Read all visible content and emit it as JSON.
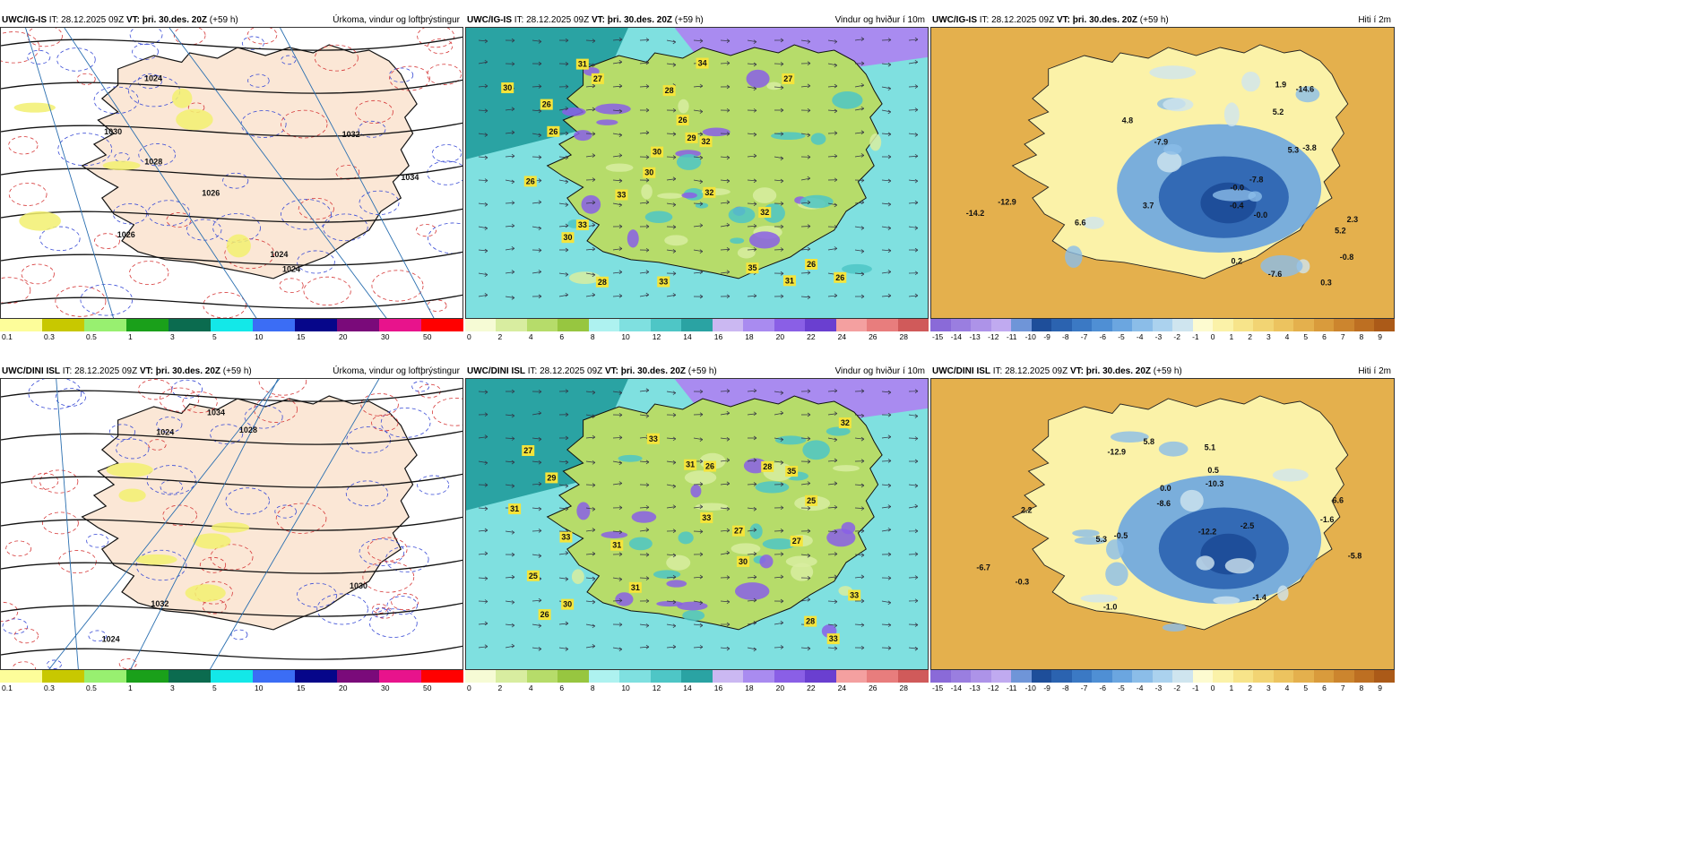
{
  "rows": [
    {
      "model": "UWC/IG-IS",
      "panels": [
        {
          "model_label": "UWC/IG-IS",
          "it_label": "IT:",
          "it": "28.12.2025 09Z",
          "vt_label": "VT:",
          "vt": "þri. 30.des. 20Z",
          "lead": "(+59 h)",
          "title": "Úrkoma, vindur og loftþrýstingur",
          "map_labels": [
            "1024",
            "1024",
            "1026",
            "1030",
            "1032",
            "1024",
            "1034",
            "1028",
            "1026"
          ]
        },
        {
          "model_label": "UWC/IG-IS",
          "it_label": "IT:",
          "it": "28.12.2025 09Z",
          "vt_label": "VT:",
          "vt": "þri. 30.des. 20Z",
          "lead": "(+59 h)",
          "title": "Vindur og hviður í 10m",
          "map_labels": [
            "30",
            "35",
            "32",
            "26",
            "27",
            "31",
            "33",
            "30",
            "33",
            "32",
            "28",
            "26",
            "27",
            "32",
            "34",
            "30",
            "26",
            "29",
            "26",
            "26",
            "26",
            "33",
            "30",
            "31",
            "28"
          ]
        },
        {
          "model_label": "UWC/IG-IS",
          "it_label": "IT:",
          "it": "28.12.2025 09Z",
          "vt_label": "VT:",
          "vt": "þri. 30.des. 20Z",
          "lead": "(+59 h)",
          "title": "Hiti í 2m",
          "map_labels": [
            "-0.4",
            "2.3",
            "5.3",
            "5.2",
            "0.2",
            "5.2",
            "-3.8",
            "-7.9",
            "-0.8",
            "-7.6",
            "-7.8",
            "-0.0",
            "-14.2",
            "-0.0",
            "6.6",
            "0.3",
            "-14.6",
            "-12.9",
            "1.9",
            "4.8",
            "3.7"
          ]
        }
      ]
    },
    {
      "model": "UWC/DINI ISL",
      "panels": [
        {
          "model_label": "UWC/DINI ISL",
          "it_label": "IT:",
          "it": "28.12.2025 09Z",
          "vt_label": "VT:",
          "vt": "þri. 30.des. 20Z",
          "lead": "(+59 h)",
          "title": "Úrkoma, vindur og loftþrýstingur",
          "map_labels": [
            "1024",
            "1030",
            "1032",
            "1024",
            "1034",
            "1028"
          ]
        },
        {
          "model_label": "UWC/DINI ISL",
          "it_label": "IT:",
          "it": "28.12.2025 09Z",
          "vt_label": "VT:",
          "vt": "þri. 30.des. 20Z",
          "lead": "(+59 h)",
          "title": "Vindur og hviður í 10m",
          "map_labels": [
            "33",
            "33",
            "30",
            "27",
            "33",
            "29",
            "30",
            "31",
            "35",
            "31",
            "28",
            "28",
            "31",
            "33",
            "27",
            "25",
            "27",
            "33",
            "31",
            "26",
            "32",
            "26",
            "25"
          ]
        },
        {
          "model_label": "UWC/DINI ISL",
          "it_label": "IT:",
          "it": "28.12.2025 09Z",
          "vt_label": "VT:",
          "vt": "þri. 30.des. 20Z",
          "lead": "(+59 h)",
          "title": "Hiti í 2m",
          "map_labels": [
            "-1.0",
            "0.0",
            "-1.6",
            "6.6",
            "5.3",
            "-2.5",
            "0.5",
            "-0.5",
            "-8.6",
            "-1.4",
            "-5.8",
            "-12.2",
            "-10.3",
            "5.8",
            "-12.9",
            "5.1",
            "2.2",
            "-0.3",
            "-6.7"
          ]
        }
      ]
    }
  ],
  "legends": {
    "precip": {
      "colors": [
        "#fdfd9a",
        "#c8c800",
        "#98f070",
        "#1aa01a",
        "#0b6b4f",
        "#13e8e8",
        "#3b6df5",
        "#06068a",
        "#7a0a7a",
        "#e8138c",
        "#ff0000"
      ],
      "ticks": [
        "0.1",
        "0.3",
        "0.5",
        "1",
        "3",
        "5",
        "10",
        "15",
        "20",
        "30",
        "50"
      ]
    },
    "wind": {
      "colors": [
        "#f6fbd5",
        "#d8eda0",
        "#b6dc6a",
        "#97c640",
        "#aef2f0",
        "#7fe0e0",
        "#4ec6c6",
        "#2aa3a3",
        "#cbb8f2",
        "#a98bf0",
        "#8a5fe6",
        "#6a3fd0",
        "#f4a0a0",
        "#e87d7d",
        "#d05a5a"
      ],
      "ticks": [
        "0",
        "2",
        "4",
        "6",
        "8",
        "10",
        "12",
        "14",
        "16",
        "18",
        "20",
        "22",
        "24",
        "26",
        "28"
      ]
    },
    "temp": {
      "colors": [
        "#8a6ad8",
        "#9a7ee0",
        "#ad93e8",
        "#c0aaf0",
        "#6f95d8",
        "#1e4e9a",
        "#2b63b0",
        "#3b79c4",
        "#4f8fd4",
        "#6ba6e0",
        "#8bbde8",
        "#abd2ee",
        "#cfe5ef",
        "#fdfbd0",
        "#fbf2a8",
        "#f7e48a",
        "#f2d473",
        "#ecc35f",
        "#e4b04d",
        "#d99b3c",
        "#cc852e",
        "#bd6f22",
        "#ab5a18"
      ],
      "ticks": [
        "-15",
        "-14",
        "-13",
        "-12",
        "-11",
        "-10",
        "-9",
        "-8",
        "-7",
        "-6",
        "-5",
        "-4",
        "-3",
        "-2",
        "-1",
        "0",
        "1",
        "2",
        "3",
        "4",
        "5",
        "6",
        "7",
        "8",
        "9"
      ]
    }
  }
}
